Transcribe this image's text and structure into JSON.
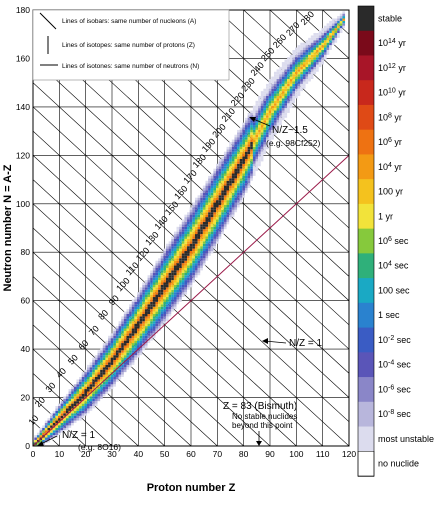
{
  "chart_data": {
    "type": "heatmap",
    "title": "",
    "xlabel": "Proton number Z",
    "ylabel": "Neutron number N = A-Z",
    "xlim": [
      0,
      120
    ],
    "ylim": [
      0,
      180
    ],
    "x_ticks": [
      "0",
      "10",
      "20",
      "30",
      "40",
      "50",
      "60",
      "70",
      "80",
      "90",
      "100",
      "110",
      "120"
    ],
    "y_ticks": [
      "0",
      "20",
      "40",
      "60",
      "80",
      "100",
      "120",
      "140",
      "160",
      "180"
    ],
    "grid": true,
    "legend": {
      "isobar": "Lines of isobars: same number of nucleons (A)",
      "isotope": "Lines of isotopes: same number of protons (Z)",
      "isotone": "Lines of isotones: same number of neutrons (N)"
    },
    "isobar_labels": [
      "10",
      "20",
      "30",
      "40",
      "50",
      "60",
      "70",
      "80",
      "90",
      "100",
      "110",
      "120",
      "130",
      "140",
      "150",
      "160",
      "170",
      "180",
      "190",
      "200",
      "210",
      "220",
      "230",
      "240",
      "250",
      "260",
      "270",
      "280"
    ],
    "annotations": {
      "nz1_lower_a": "N/Z = 1",
      "nz1_lower_b": "(e.g. 8O16)",
      "nz1_diag": "N/Z = 1",
      "nz15_a": "N/Z~1.5",
      "nz15_b": "(e.g. 98Cf252)",
      "bismuth_a": "Z = 83 (Bismuth)",
      "bismuth_b": "No stable nuclides",
      "bismuth_c": "beyond this point"
    },
    "halflife_scale": {
      "labels": [
        "stable",
        "10^14 yr",
        "10^12 yr",
        "10^10 yr",
        "10^8 yr",
        "10^6 yr",
        "10^4 yr",
        "100 yr",
        "1 yr",
        "10^6 sec",
        "10^4 sec",
        "100 sec",
        "1 sec",
        "10^-2 sec",
        "10^-4 sec",
        "10^-6 sec",
        "10^-8 sec",
        "most unstable",
        "no nuclide"
      ],
      "colors": [
        "#2a2a2a",
        "#7a0a1a",
        "#a81528",
        "#c8281c",
        "#df4a16",
        "#ee7212",
        "#f39a14",
        "#f4c21e",
        "#f2e33a",
        "#86c93c",
        "#2fb07a",
        "#1aa9c4",
        "#2a82cf",
        "#3a5cc4",
        "#5a55b8",
        "#8a86c8",
        "#b8b6dc",
        "#dcdcee",
        "#ffffff"
      ]
    },
    "stability_band": [
      {
        "z": 0,
        "n_center": 0,
        "n_halfwidth": 2
      },
      {
        "z": 10,
        "n_center": 11,
        "n_halfwidth": 6
      },
      {
        "z": 20,
        "n_center": 22,
        "n_halfwidth": 9
      },
      {
        "z": 30,
        "n_center": 35,
        "n_halfwidth": 11
      },
      {
        "z": 40,
        "n_center": 50,
        "n_halfwidth": 13
      },
      {
        "z": 50,
        "n_center": 66,
        "n_halfwidth": 15
      },
      {
        "z": 60,
        "n_center": 82,
        "n_halfwidth": 16
      },
      {
        "z": 70,
        "n_center": 100,
        "n_halfwidth": 16
      },
      {
        "z": 80,
        "n_center": 118,
        "n_halfwidth": 15
      },
      {
        "z": 90,
        "n_center": 138,
        "n_halfwidth": 13
      },
      {
        "z": 100,
        "n_center": 154,
        "n_halfwidth": 10
      },
      {
        "z": 110,
        "n_center": 165,
        "n_halfwidth": 7
      },
      {
        "z": 118,
        "n_center": 176,
        "n_halfwidth": 3
      }
    ]
  }
}
